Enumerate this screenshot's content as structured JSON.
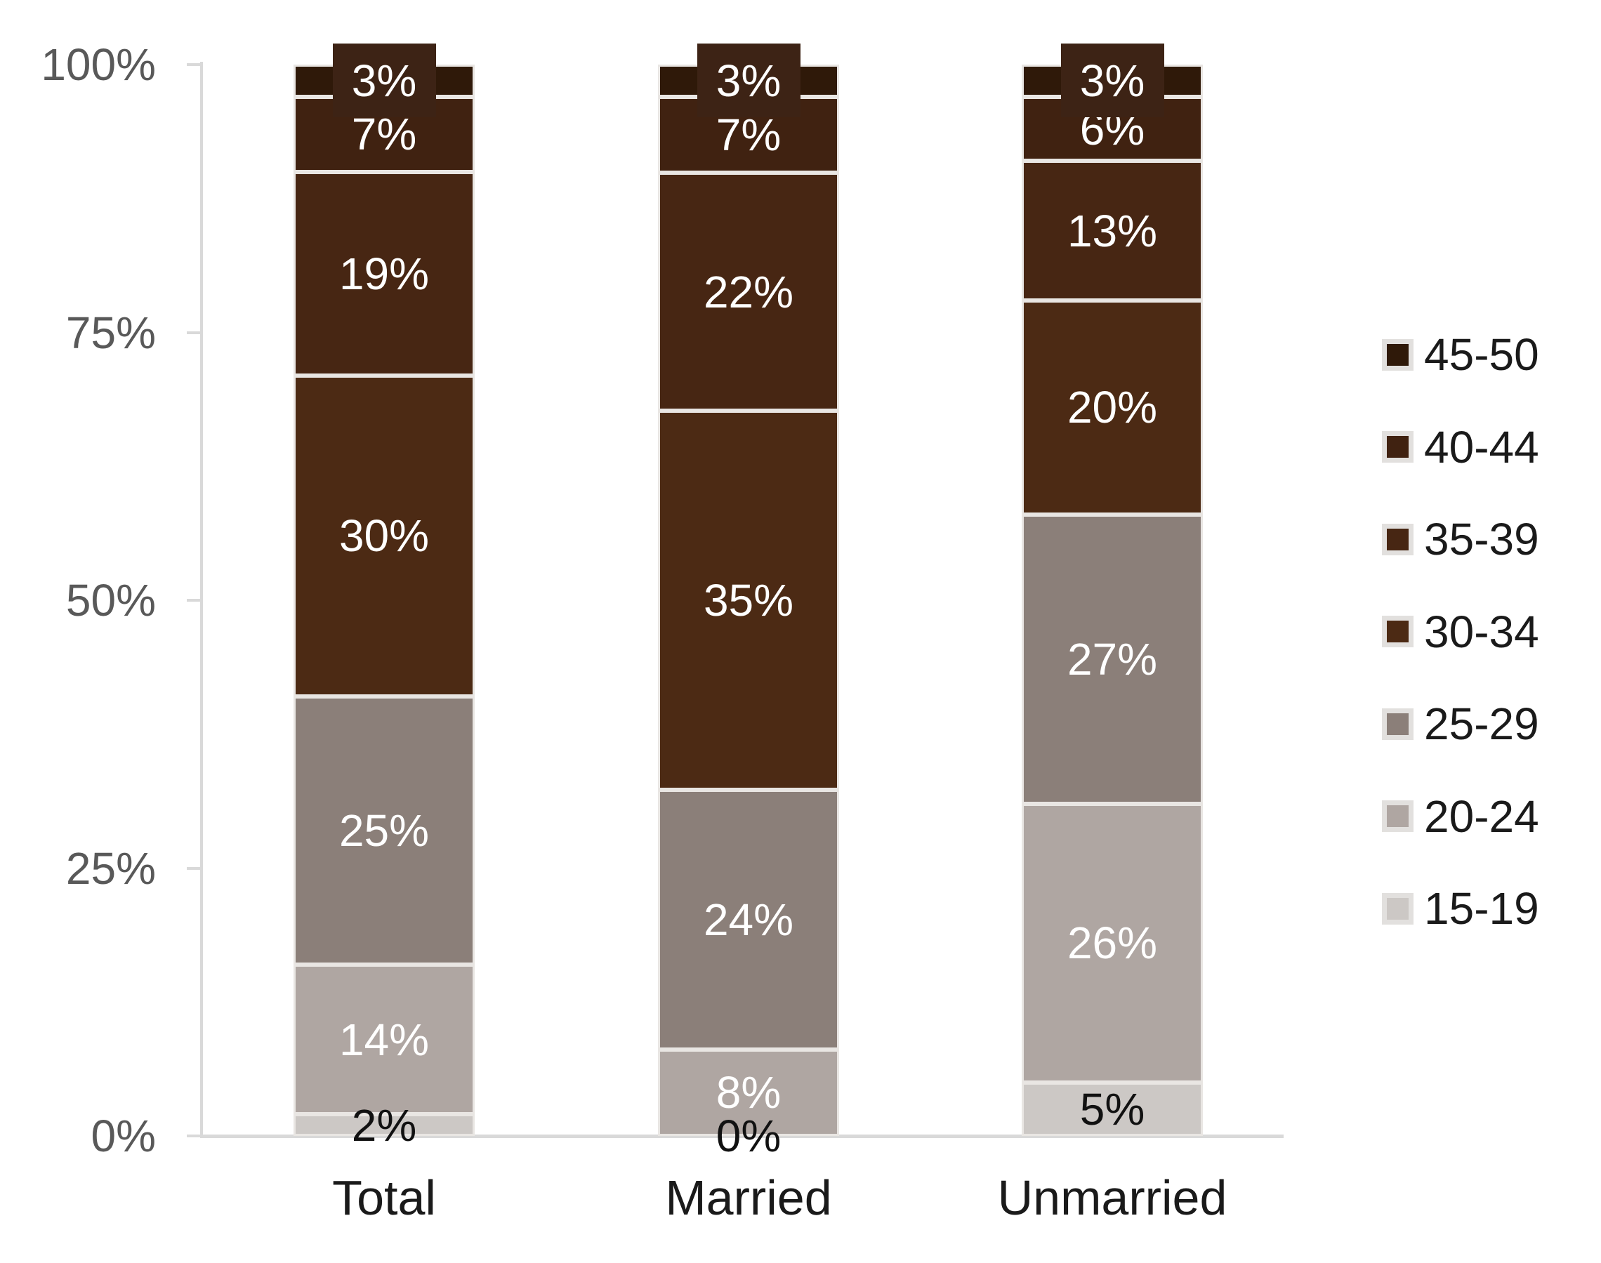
{
  "chart_data": {
    "type": "bar",
    "stacked": true,
    "percent_stacked": true,
    "title": "",
    "xlabel": "",
    "ylabel": "",
    "grid": false,
    "categories": [
      "Total",
      "Married",
      "Unmarried"
    ],
    "series": [
      {
        "name": "45-50",
        "values": [
          3,
          3,
          3
        ],
        "labels": [
          "3%",
          "3%",
          "3%"
        ],
        "color": "#2F1909",
        "label_color": "#FFFFFF",
        "label_style": "callout",
        "callout_color": "#3D2315"
      },
      {
        "name": "40-44",
        "values": [
          7,
          7,
          6
        ],
        "labels": [
          "7%",
          "7%",
          "6%"
        ],
        "color": "#402211",
        "label_color": "#FFFFFF"
      },
      {
        "name": "35-39",
        "values": [
          19,
          22,
          13
        ],
        "labels": [
          "19%",
          "22%",
          "13%"
        ],
        "color": "#472613",
        "label_color": "#FFFFFF"
      },
      {
        "name": "30-34",
        "values": [
          30,
          35,
          20
        ],
        "labels": [
          "30%",
          "35%",
          "20%"
        ],
        "color": "#4C2A14",
        "label_color": "#FFFFFF"
      },
      {
        "name": "25-29",
        "values": [
          25,
          24,
          27
        ],
        "labels": [
          "25%",
          "24%",
          "27%"
        ],
        "color": "#8B7F79",
        "label_color": "#FFFFFF"
      },
      {
        "name": "20-24",
        "values": [
          14,
          8,
          26
        ],
        "labels": [
          "14%",
          "8%",
          "26%"
        ],
        "color": "#AFA6A2",
        "label_color": "#FFFFFF"
      },
      {
        "name": "15-19",
        "values": [
          2,
          0,
          5
        ],
        "labels": [
          "2%",
          "0%",
          "5%"
        ],
        "color": "#CCC8C5",
        "label_color": "#111111"
      }
    ],
    "stack_order": "last_series_at_bottom",
    "y_axis": {
      "min": 0,
      "max": 100,
      "ticks": [
        {
          "value": 0,
          "label": "0%"
        },
        {
          "value": 25,
          "label": "25%"
        },
        {
          "value": 50,
          "label": "50%"
        },
        {
          "value": 75,
          "label": "75%"
        },
        {
          "value": 100,
          "label": "100%"
        }
      ],
      "tick_text_color": "#595959"
    },
    "legend": {
      "position": "right",
      "items": [
        "45-50",
        "40-44",
        "35-39",
        "30-34",
        "25-29",
        "20-24",
        "15-19"
      ],
      "text_color": "#1A1A1A",
      "swatch_border_color": "#E2E0DE"
    },
    "colors": {
      "axis_line": "#D9D9D9",
      "segment_separator": "#E9E6E3",
      "category_text": "#1A1A1A",
      "background": "#FFFFFF"
    }
  }
}
